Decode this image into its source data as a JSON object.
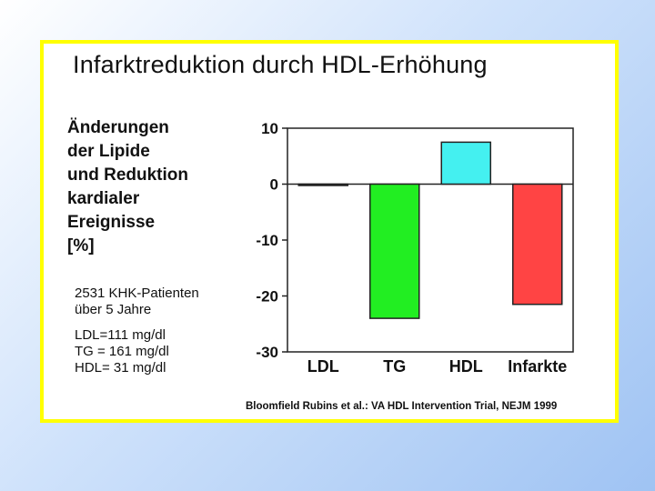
{
  "slide": {
    "title": "Infarktreduktion durch HDL-Erhöhung",
    "ylabel_lines": [
      "Änderungen",
      "der Lipide",
      "und Reduktion",
      "kardialer",
      "Ereignisse",
      "[%]"
    ],
    "notes_patients": [
      "2531 KHK-Patienten",
      "über 5 Jahre"
    ],
    "notes_baseline": [
      "LDL=111 mg/dl",
      "TG = 161 mg/dl",
      "HDL= 31 mg/dl"
    ],
    "source": "Bloomfield Rubins et al.: VA HDL Intervention Trial, NEJM 1999",
    "colors": {
      "frame": "#ffff00",
      "background": "#b8d4f5"
    }
  },
  "chart_data": {
    "type": "bar",
    "categories": [
      "LDL",
      "TG",
      "HDL",
      "Infarkte"
    ],
    "values": [
      0,
      -24,
      7.5,
      -21.5
    ],
    "colors": [
      "#000000",
      "#22ee22",
      "#44f0f0",
      "#ff4444"
    ],
    "ylim": [
      -30,
      10
    ],
    "yticks": [
      10,
      0,
      -10,
      -20,
      -30
    ],
    "ytick_labels": [
      "10",
      "0",
      "-10",
      "-20",
      "-30"
    ],
    "grid": false,
    "legend": "none"
  }
}
